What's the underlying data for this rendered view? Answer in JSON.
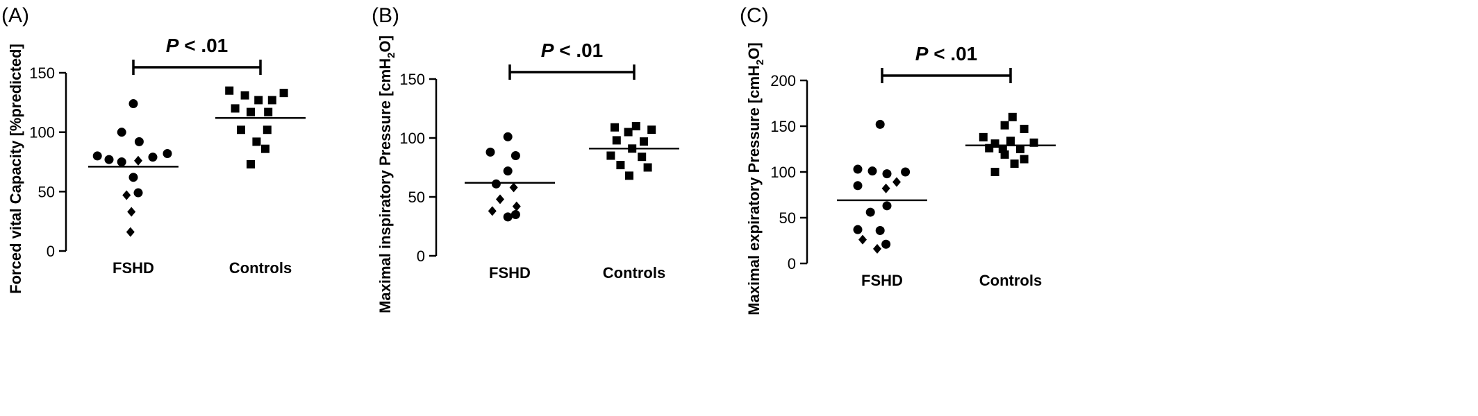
{
  "chart_data": [
    {
      "panel": "(A)",
      "type": "scatter",
      "ylabel": "Forced vital Capacity [%predicted]",
      "ylim": [
        0,
        150
      ],
      "yticks": [
        0,
        50,
        100,
        150
      ],
      "categories": [
        "FSHD",
        "Controls"
      ],
      "significance": {
        "p": "P",
        "rest": " < .01"
      },
      "means": [
        71,
        112
      ],
      "points": [
        {
          "group": 0,
          "dx": 0.0,
          "y": 124,
          "shape": "circle"
        },
        {
          "group": 0,
          "dx": -0.12,
          "y": 100,
          "shape": "circle"
        },
        {
          "group": 0,
          "dx": 0.06,
          "y": 92,
          "shape": "circle"
        },
        {
          "group": 0,
          "dx": -0.37,
          "y": 80,
          "shape": "circle"
        },
        {
          "group": 0,
          "dx": -0.25,
          "y": 77,
          "shape": "circle"
        },
        {
          "group": 0,
          "dx": -0.12,
          "y": 75,
          "shape": "circle"
        },
        {
          "group": 0,
          "dx": 0.05,
          "y": 76,
          "shape": "diamond"
        },
        {
          "group": 0,
          "dx": 0.2,
          "y": 79,
          "shape": "circle"
        },
        {
          "group": 0,
          "dx": 0.35,
          "y": 82,
          "shape": "circle"
        },
        {
          "group": 0,
          "dx": 0.0,
          "y": 62,
          "shape": "circle"
        },
        {
          "group": 0,
          "dx": 0.05,
          "y": 49,
          "shape": "circle"
        },
        {
          "group": 0,
          "dx": -0.07,
          "y": 47,
          "shape": "diamond"
        },
        {
          "group": 0,
          "dx": -0.02,
          "y": 33,
          "shape": "diamond"
        },
        {
          "group": 0,
          "dx": -0.03,
          "y": 16,
          "shape": "diamond"
        },
        {
          "group": 1,
          "dx": -0.32,
          "y": 135,
          "shape": "square"
        },
        {
          "group": 1,
          "dx": -0.16,
          "y": 131,
          "shape": "square"
        },
        {
          "group": 1,
          "dx": 0.24,
          "y": 133,
          "shape": "square"
        },
        {
          "group": 1,
          "dx": -0.02,
          "y": 127,
          "shape": "square"
        },
        {
          "group": 1,
          "dx": 0.12,
          "y": 127,
          "shape": "square"
        },
        {
          "group": 1,
          "dx": -0.26,
          "y": 120,
          "shape": "square"
        },
        {
          "group": 1,
          "dx": -0.1,
          "y": 117,
          "shape": "square"
        },
        {
          "group": 1,
          "dx": 0.08,
          "y": 117,
          "shape": "square"
        },
        {
          "group": 1,
          "dx": -0.2,
          "y": 102,
          "shape": "square"
        },
        {
          "group": 1,
          "dx": 0.07,
          "y": 102,
          "shape": "square"
        },
        {
          "group": 1,
          "dx": -0.04,
          "y": 92,
          "shape": "square"
        },
        {
          "group": 1,
          "dx": 0.05,
          "y": 86,
          "shape": "square"
        },
        {
          "group": 1,
          "dx": -0.1,
          "y": 73,
          "shape": "square"
        }
      ]
    },
    {
      "panel": "(B)",
      "type": "scatter",
      "ylabel": "Maximal inspiratory Pressure [cmH2O]",
      "ylim": [
        0,
        150
      ],
      "yticks": [
        0,
        50,
        100,
        150
      ],
      "categories": [
        "FSHD",
        "Controls"
      ],
      "significance": {
        "p": "P",
        "rest": " < .01"
      },
      "means": [
        62,
        91
      ],
      "points": [
        {
          "group": 0,
          "dx": -0.02,
          "y": 101,
          "shape": "circle"
        },
        {
          "group": 0,
          "dx": -0.2,
          "y": 88,
          "shape": "circle"
        },
        {
          "group": 0,
          "dx": 0.06,
          "y": 85,
          "shape": "circle"
        },
        {
          "group": 0,
          "dx": -0.02,
          "y": 72,
          "shape": "circle"
        },
        {
          "group": 0,
          "dx": -0.14,
          "y": 61,
          "shape": "circle"
        },
        {
          "group": 0,
          "dx": 0.04,
          "y": 58,
          "shape": "diamond"
        },
        {
          "group": 0,
          "dx": -0.1,
          "y": 48,
          "shape": "diamond"
        },
        {
          "group": 0,
          "dx": 0.07,
          "y": 42,
          "shape": "diamond"
        },
        {
          "group": 0,
          "dx": -0.18,
          "y": 38,
          "shape": "diamond"
        },
        {
          "group": 0,
          "dx": 0.06,
          "y": 35,
          "shape": "circle"
        },
        {
          "group": 0,
          "dx": -0.02,
          "y": 33,
          "shape": "circle"
        },
        {
          "group": 1,
          "dx": -0.2,
          "y": 109,
          "shape": "square"
        },
        {
          "group": 1,
          "dx": 0.02,
          "y": 110,
          "shape": "square"
        },
        {
          "group": 1,
          "dx": -0.06,
          "y": 105,
          "shape": "square"
        },
        {
          "group": 1,
          "dx": 0.18,
          "y": 107,
          "shape": "square"
        },
        {
          "group": 1,
          "dx": -0.18,
          "y": 98,
          "shape": "square"
        },
        {
          "group": 1,
          "dx": 0.1,
          "y": 97,
          "shape": "square"
        },
        {
          "group": 1,
          "dx": -0.02,
          "y": 91,
          "shape": "square"
        },
        {
          "group": 1,
          "dx": -0.24,
          "y": 85,
          "shape": "square"
        },
        {
          "group": 1,
          "dx": 0.08,
          "y": 84,
          "shape": "square"
        },
        {
          "group": 1,
          "dx": -0.14,
          "y": 77,
          "shape": "square"
        },
        {
          "group": 1,
          "dx": 0.14,
          "y": 75,
          "shape": "square"
        },
        {
          "group": 1,
          "dx": -0.05,
          "y": 68,
          "shape": "square"
        }
      ]
    },
    {
      "panel": "(C)",
      "type": "scatter",
      "ylabel": "Maximal expiratory Pressure [cmH2O]",
      "ylim": [
        0,
        200
      ],
      "yticks": [
        0,
        50,
        100,
        150,
        200
      ],
      "categories": [
        "FSHD",
        "Controls"
      ],
      "significance": {
        "p": "P",
        "rest": " < .01"
      },
      "means": [
        69,
        129
      ],
      "points": [
        {
          "group": 0,
          "dx": -0.02,
          "y": 152,
          "shape": "circle"
        },
        {
          "group": 0,
          "dx": -0.25,
          "y": 103,
          "shape": "circle"
        },
        {
          "group": 0,
          "dx": -0.1,
          "y": 101,
          "shape": "circle"
        },
        {
          "group": 0,
          "dx": 0.05,
          "y": 98,
          "shape": "circle"
        },
        {
          "group": 0,
          "dx": 0.24,
          "y": 100,
          "shape": "circle"
        },
        {
          "group": 0,
          "dx": 0.15,
          "y": 89,
          "shape": "diamond"
        },
        {
          "group": 0,
          "dx": -0.25,
          "y": 85,
          "shape": "circle"
        },
        {
          "group": 0,
          "dx": 0.04,
          "y": 82,
          "shape": "diamond"
        },
        {
          "group": 0,
          "dx": 0.05,
          "y": 63,
          "shape": "circle"
        },
        {
          "group": 0,
          "dx": -0.12,
          "y": 56,
          "shape": "circle"
        },
        {
          "group": 0,
          "dx": -0.25,
          "y": 37,
          "shape": "circle"
        },
        {
          "group": 0,
          "dx": -0.02,
          "y": 36,
          "shape": "circle"
        },
        {
          "group": 0,
          "dx": -0.2,
          "y": 26,
          "shape": "diamond"
        },
        {
          "group": 0,
          "dx": 0.04,
          "y": 21,
          "shape": "circle"
        },
        {
          "group": 0,
          "dx": -0.05,
          "y": 16,
          "shape": "diamond"
        },
        {
          "group": 1,
          "dx": 0.02,
          "y": 160,
          "shape": "square"
        },
        {
          "group": 1,
          "dx": -0.06,
          "y": 151,
          "shape": "square"
        },
        {
          "group": 1,
          "dx": 0.14,
          "y": 147,
          "shape": "square"
        },
        {
          "group": 1,
          "dx": -0.28,
          "y": 138,
          "shape": "square"
        },
        {
          "group": 1,
          "dx": 0.0,
          "y": 134,
          "shape": "square"
        },
        {
          "group": 1,
          "dx": -0.16,
          "y": 131,
          "shape": "square"
        },
        {
          "group": 1,
          "dx": 0.24,
          "y": 132,
          "shape": "square"
        },
        {
          "group": 1,
          "dx": -0.22,
          "y": 126,
          "shape": "square"
        },
        {
          "group": 1,
          "dx": -0.08,
          "y": 125,
          "shape": "square"
        },
        {
          "group": 1,
          "dx": 0.1,
          "y": 125,
          "shape": "square"
        },
        {
          "group": 1,
          "dx": -0.06,
          "y": 119,
          "shape": "square"
        },
        {
          "group": 1,
          "dx": 0.14,
          "y": 114,
          "shape": "square"
        },
        {
          "group": 1,
          "dx": 0.04,
          "y": 109,
          "shape": "square"
        },
        {
          "group": 1,
          "dx": -0.16,
          "y": 100,
          "shape": "square"
        }
      ]
    }
  ]
}
